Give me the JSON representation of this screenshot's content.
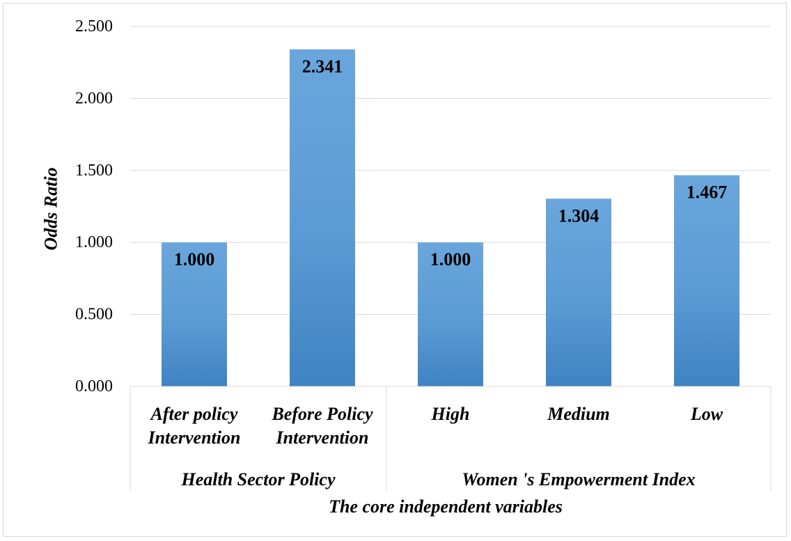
{
  "chart_data": {
    "type": "bar",
    "ylabel": "Odds Ratio",
    "xlabel": "The core independent variables",
    "ylim": [
      0,
      2.5
    ],
    "yticks": [
      "0.000",
      "0.500",
      "1.000",
      "1.500",
      "2.000",
      "2.500"
    ],
    "grid": true,
    "bar_color": "#5b9bd5",
    "groups": [
      {
        "label": "Health Sector Policy",
        "categories": [
          0,
          1
        ]
      },
      {
        "label": "Women 's Empowerment Index",
        "categories": [
          2,
          3,
          4
        ]
      }
    ],
    "categories": [
      [
        "After policy",
        "Intervention"
      ],
      [
        "Before Policy",
        "Intervention"
      ],
      [
        "High"
      ],
      [
        "Medium"
      ],
      [
        "Low"
      ]
    ],
    "values": [
      1.0,
      2.341,
      1.0,
      1.304,
      1.467
    ],
    "data_labels": [
      "1.000",
      "2.341",
      "1.000",
      "1.304",
      "1.467"
    ]
  }
}
